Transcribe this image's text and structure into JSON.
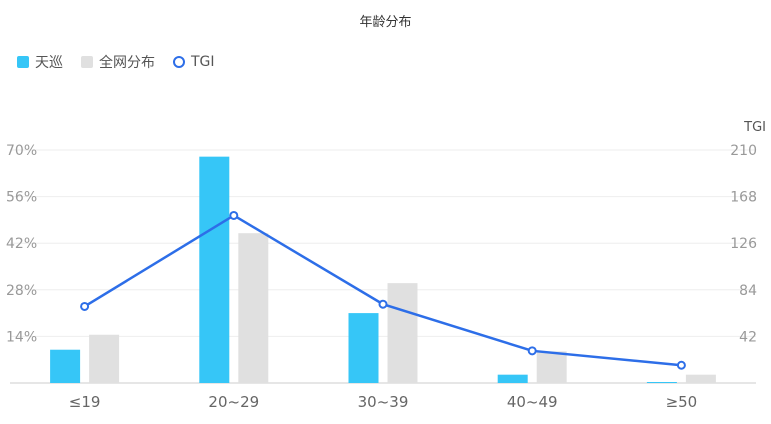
{
  "chart_data": {
    "type": "bar",
    "title": "年龄分布",
    "categories": [
      "≤19",
      "20~29",
      "30~39",
      "40~49",
      "≥50"
    ],
    "series": [
      {
        "name": "天巡",
        "kind": "bar",
        "axis": "left",
        "color": "#36c6f7",
        "values": [
          10,
          68,
          21,
          2.5,
          0.3
        ]
      },
      {
        "name": "全网分布",
        "kind": "bar",
        "axis": "left",
        "color": "#e0e0e0",
        "values": [
          14.5,
          45,
          30,
          9.5,
          2.5
        ]
      },
      {
        "name": "TGI",
        "kind": "line",
        "axis": "right",
        "color": "#2d6ee8",
        "values": [
          69,
          151,
          71,
          29,
          16
        ]
      }
    ],
    "left_axis": {
      "ylim": [
        0,
        70
      ],
      "ticks": [
        "70%",
        "56%",
        "42%",
        "28%",
        "14%"
      ]
    },
    "right_axis": {
      "label": "TGI",
      "ylim": [
        0,
        210
      ],
      "ticks": [
        "210",
        "168",
        "126",
        "84",
        "42"
      ]
    },
    "grid": true,
    "legend": "top-left"
  }
}
